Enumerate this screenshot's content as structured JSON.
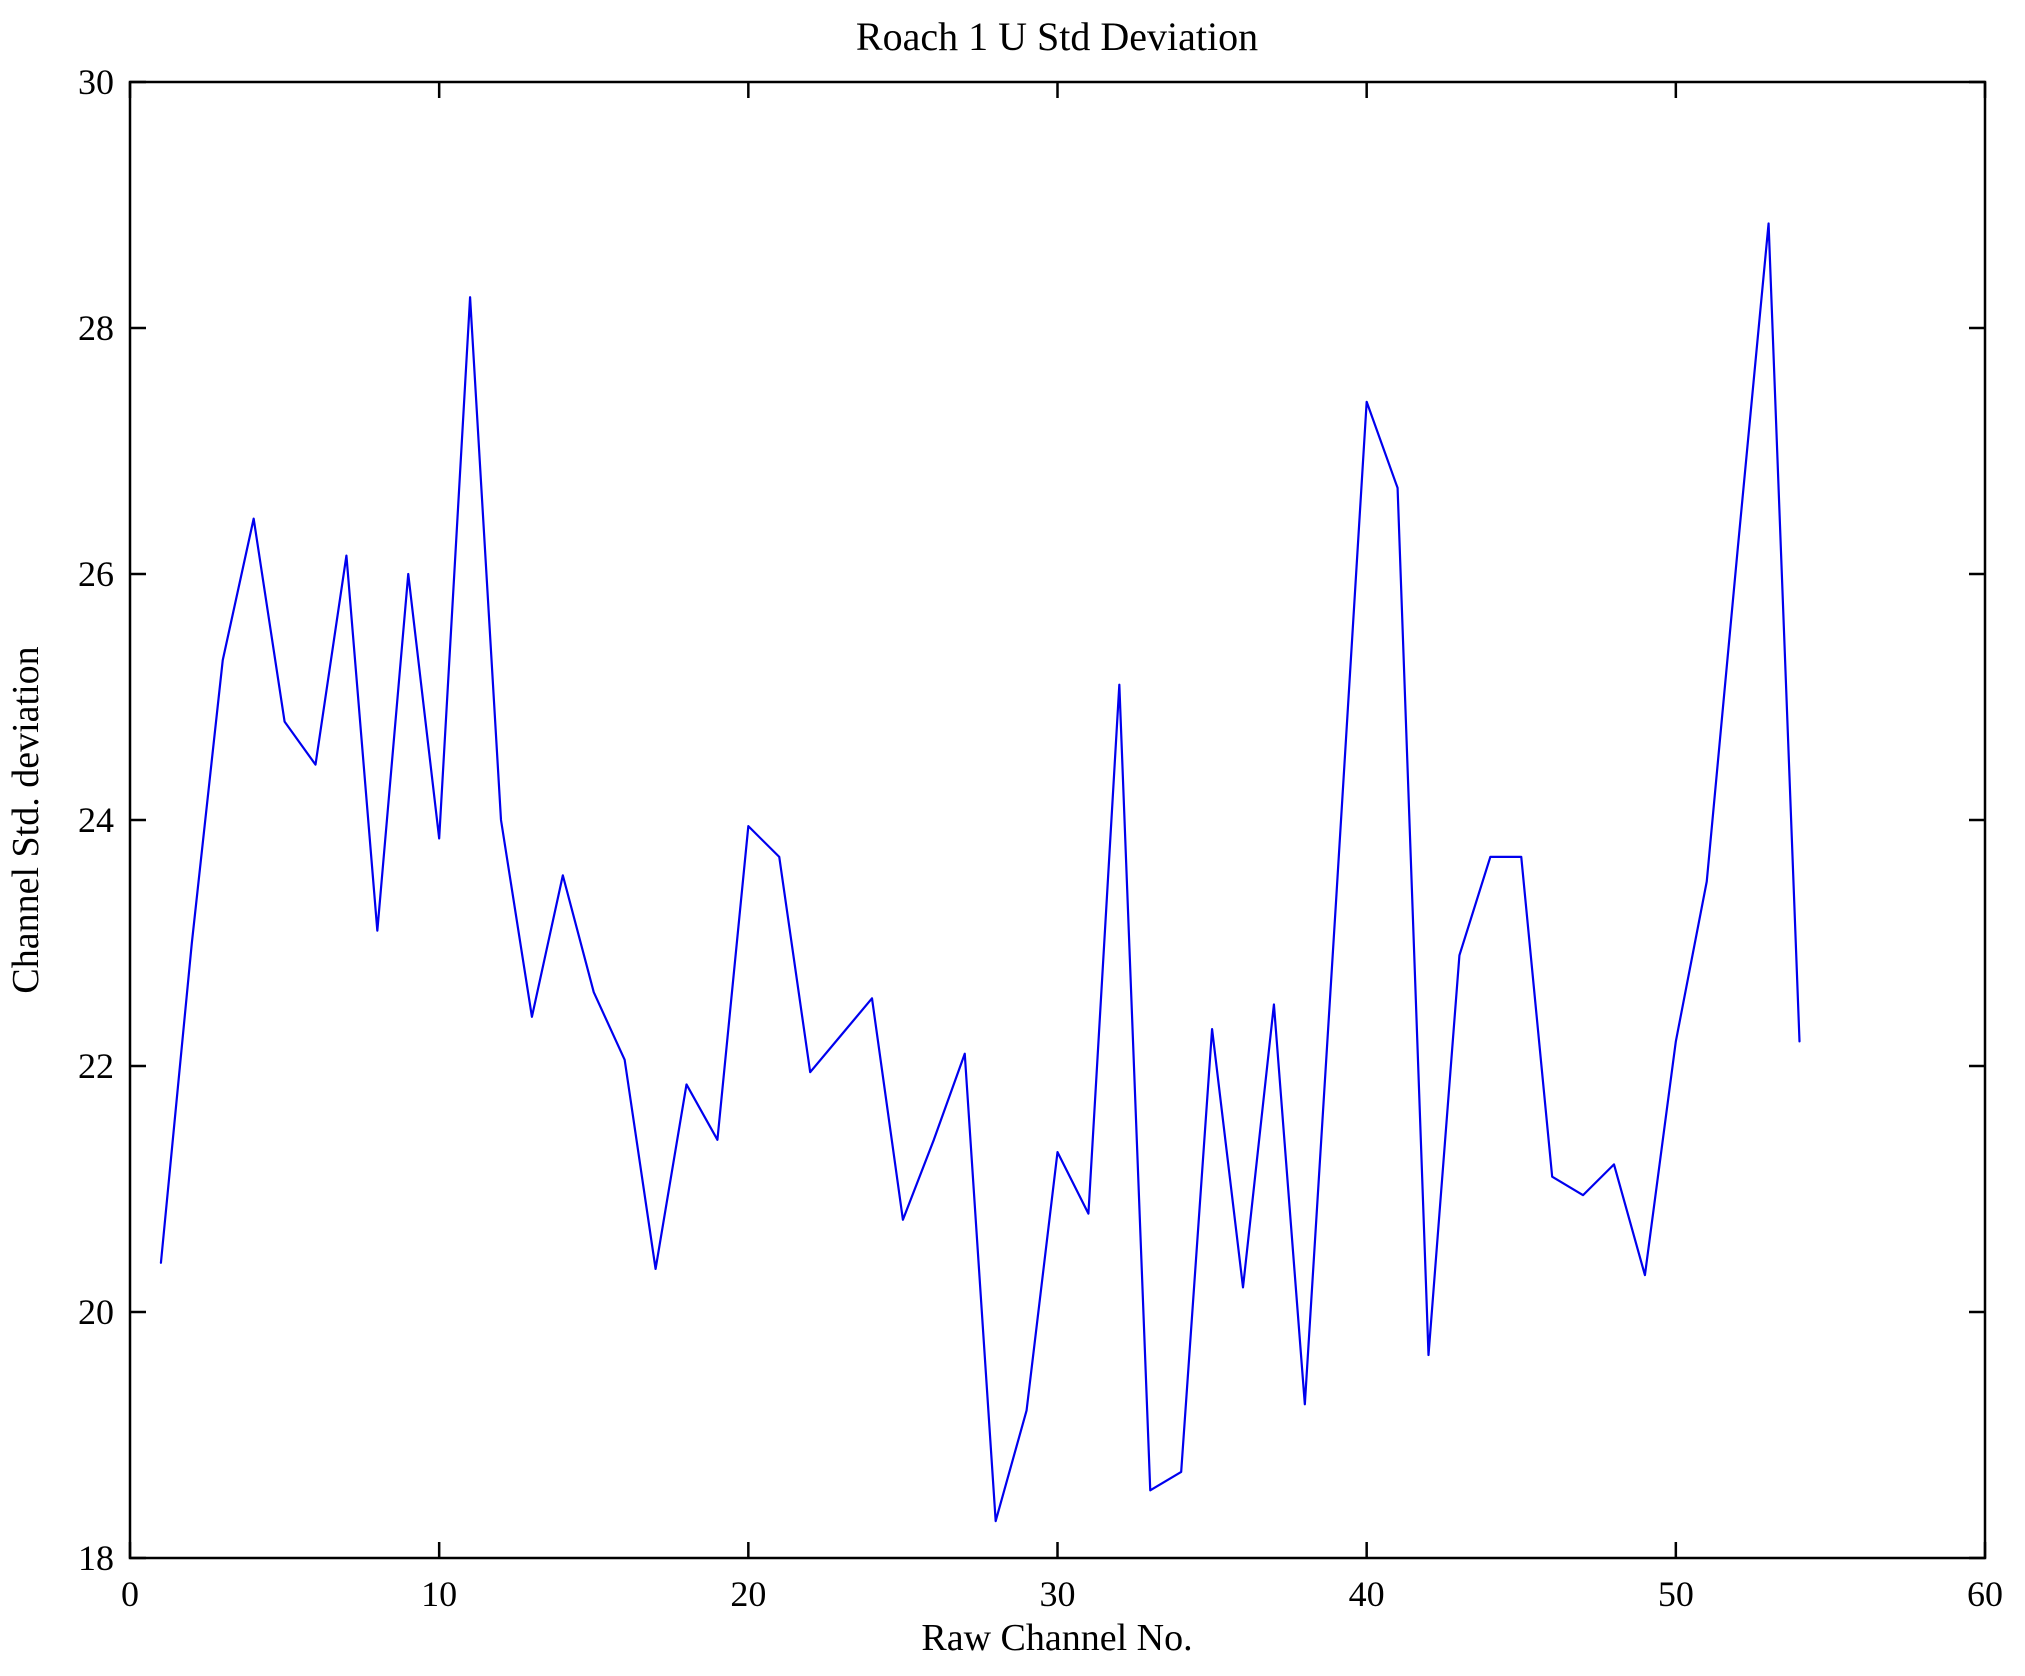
{
  "chart_data": {
    "type": "line",
    "title": "Roach 1 U Std Deviation",
    "xlabel": "Raw Channel No.",
    "ylabel": "Channel Std. deviation",
    "xlim": [
      0,
      60
    ],
    "ylim": [
      18,
      30
    ],
    "x_ticks": [
      0,
      10,
      20,
      30,
      40,
      50,
      60
    ],
    "y_ticks": [
      18,
      20,
      22,
      24,
      26,
      28,
      30
    ],
    "grid": false,
    "legend": "none",
    "line_color": "#0000ee",
    "axis_color": "#000000",
    "background_color": "#ffffff",
    "x": [
      1,
      2,
      3,
      4,
      5,
      6,
      7,
      8,
      9,
      10,
      11,
      12,
      13,
      14,
      15,
      16,
      17,
      18,
      19,
      20,
      21,
      22,
      23,
      24,
      25,
      26,
      27,
      28,
      29,
      30,
      31,
      32,
      33,
      34,
      35,
      36,
      37,
      38,
      39,
      40,
      41,
      42,
      43,
      44,
      45,
      46,
      47,
      48,
      49,
      50,
      51,
      52,
      53,
      54
    ],
    "y": [
      20.4,
      23.0,
      25.3,
      26.45,
      24.8,
      24.45,
      26.15,
      23.1,
      26.0,
      23.85,
      28.25,
      24.0,
      22.4,
      23.55,
      22.6,
      22.05,
      20.35,
      21.85,
      21.4,
      23.95,
      23.7,
      21.95,
      22.25,
      22.55,
      20.75,
      21.4,
      22.1,
      18.3,
      19.2,
      21.3,
      20.8,
      25.1,
      18.55,
      18.7,
      22.3,
      20.2,
      22.5,
      19.25,
      23.3,
      27.4,
      26.7,
      19.65,
      22.9,
      23.7,
      23.7,
      21.1,
      20.95,
      21.2,
      20.3,
      22.2,
      23.5,
      26.2,
      28.85,
      22.2
    ]
  }
}
